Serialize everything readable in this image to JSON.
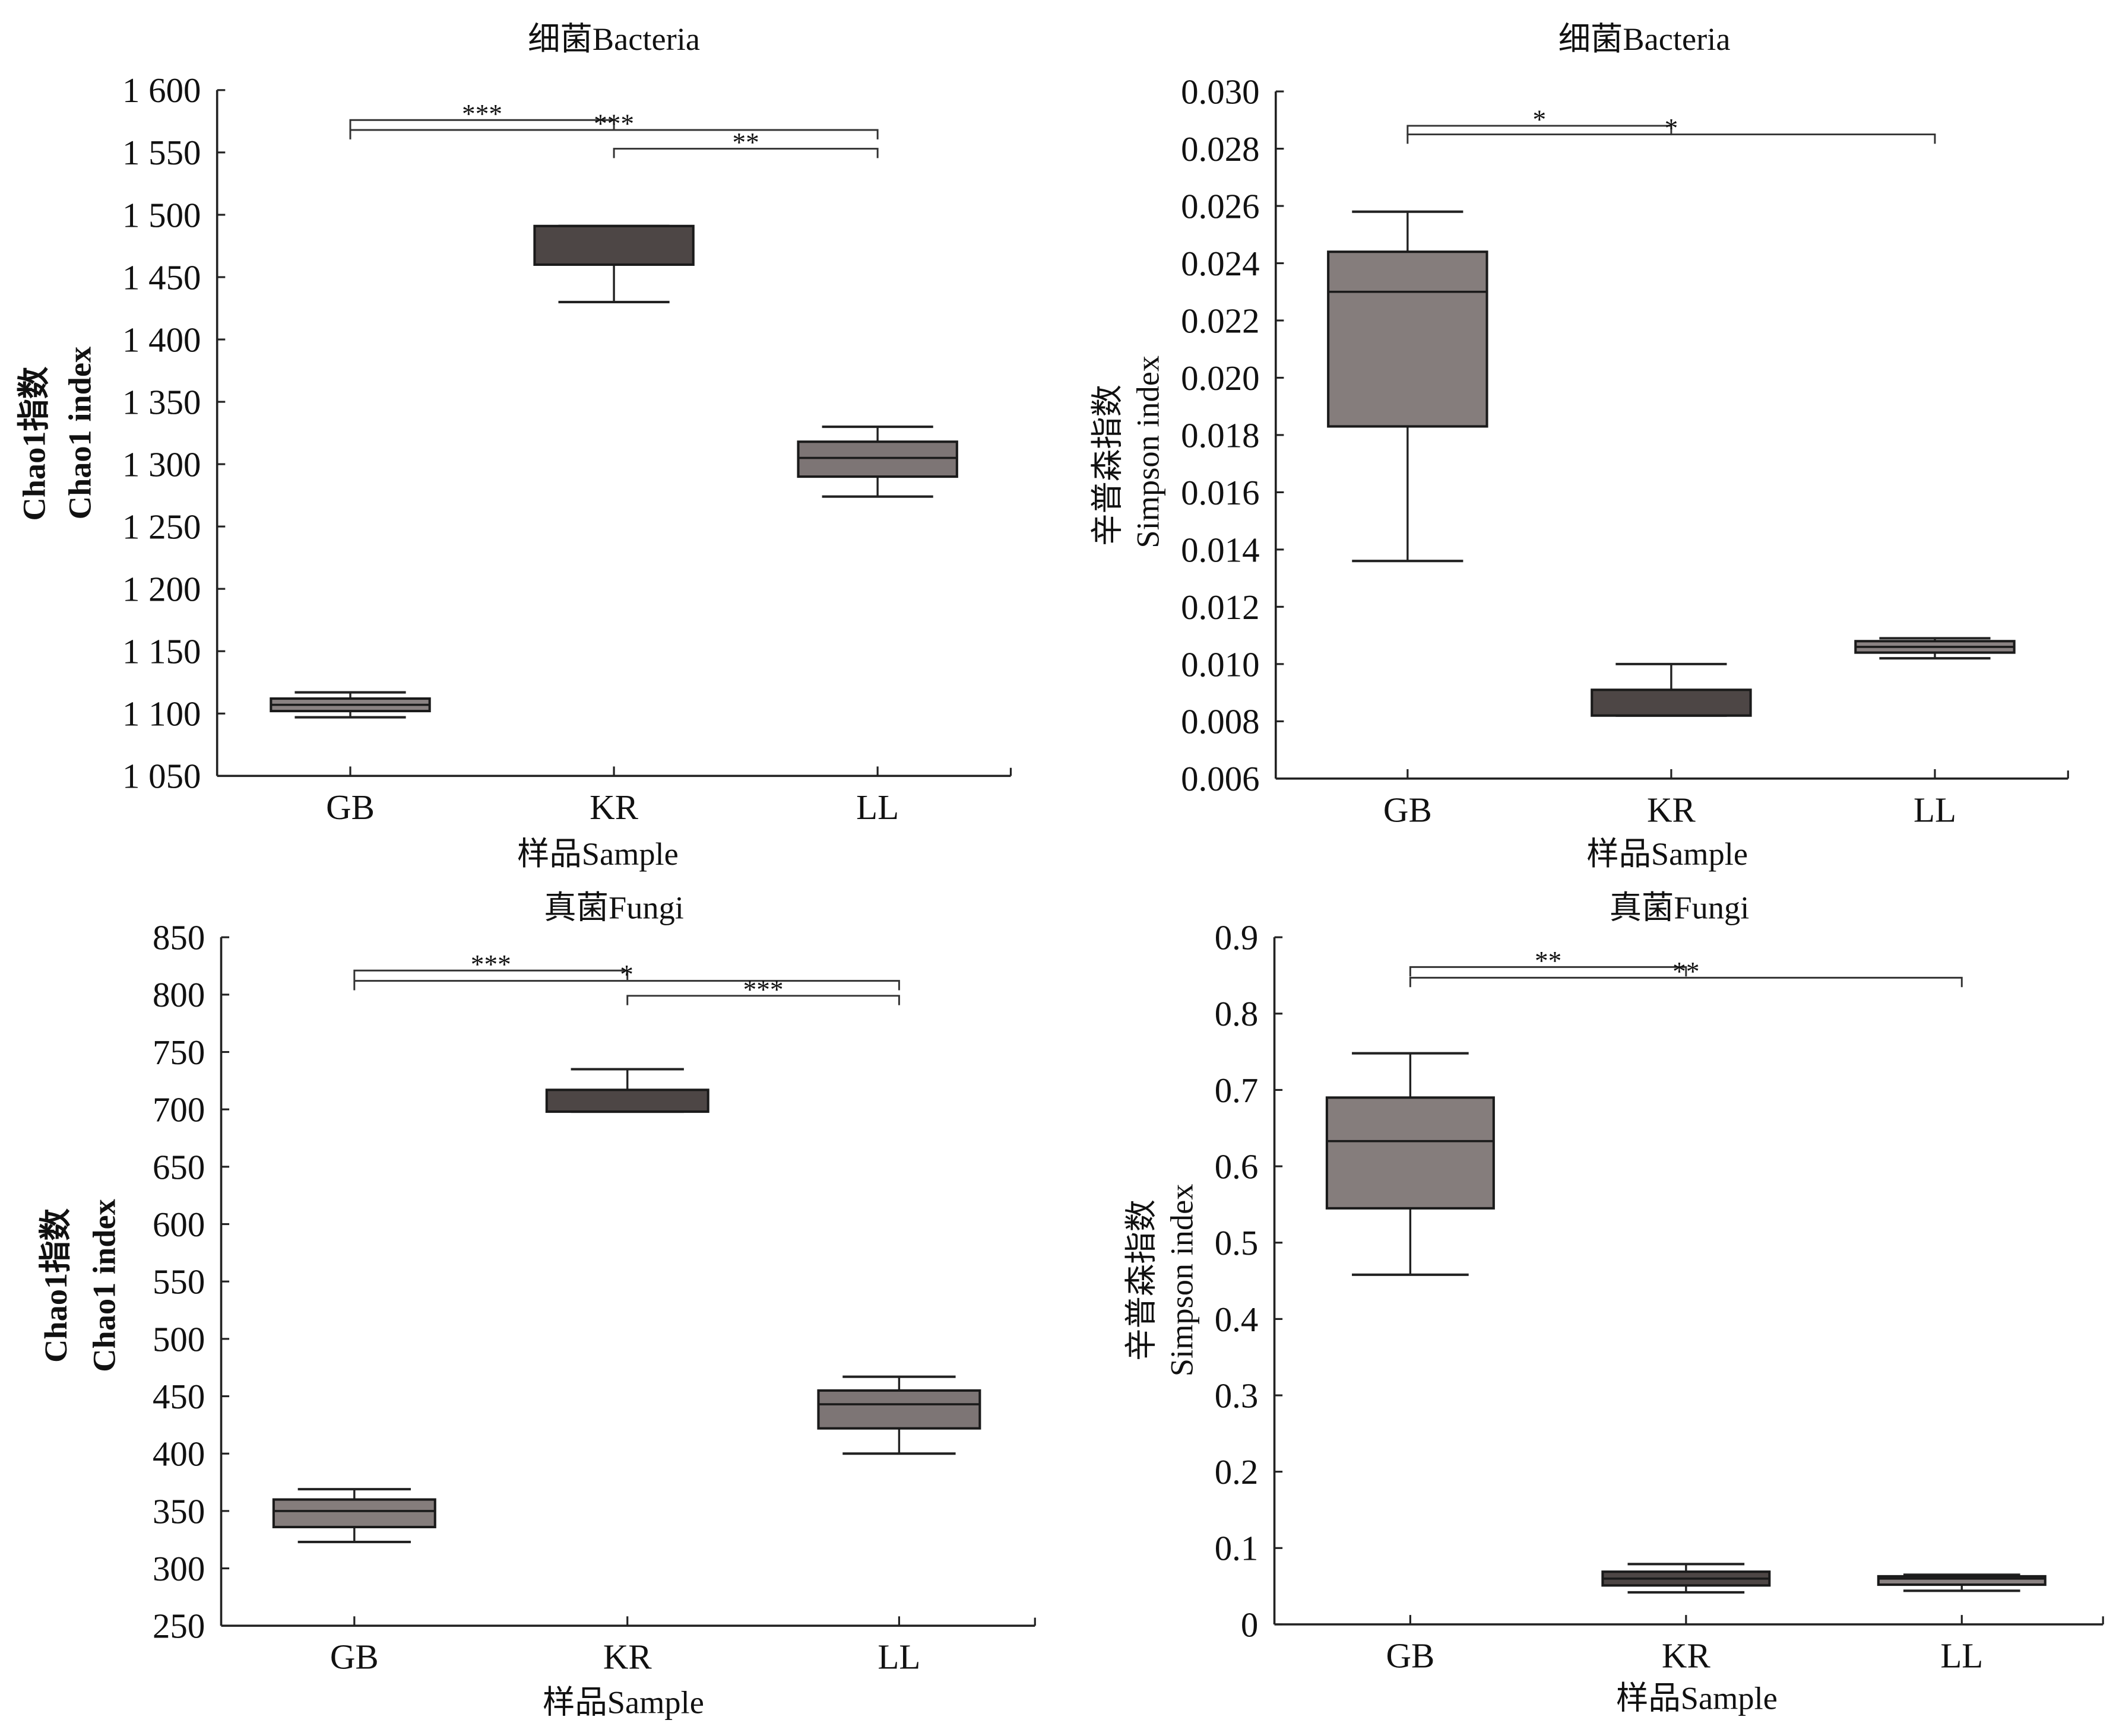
{
  "chart_data": [
    {
      "type": "box",
      "title": "细菌Bacteria",
      "xlabel": "样品Sample",
      "ylabel_cn": "Chao1指数",
      "ylabel_en": "Chao1 index",
      "ylim": [
        1050,
        1600
      ],
      "yticks": [
        1050,
        1100,
        1150,
        1200,
        1250,
        1300,
        1350,
        1400,
        1450,
        1500,
        1550,
        1600
      ],
      "ytick_labels": [
        "1 050",
        "1 100",
        "1 150",
        "1 200",
        "1 250",
        "1 300",
        "1 350",
        "1 400",
        "1 450",
        "1 500",
        "1 550",
        "1 600"
      ],
      "categories": [
        "GB",
        "KR",
        "LL"
      ],
      "boxes": [
        {
          "name": "GB",
          "min": 1097,
          "q1": 1102,
          "median": 1107,
          "q3": 1112,
          "max": 1117,
          "color": "#8a8282"
        },
        {
          "name": "KR",
          "min": 1430,
          "q1": 1460,
          "median": 1491,
          "q3": 1491,
          "max": 1491,
          "color": "#4d4645"
        },
        {
          "name": "LL",
          "min": 1274,
          "q1": 1290,
          "median": 1305,
          "q3": 1318,
          "max": 1330,
          "color": "#7d7575"
        }
      ],
      "significance": [
        {
          "from": "GB",
          "to": "KR",
          "label": "***",
          "y": 1576
        },
        {
          "from": "GB",
          "to": "LL",
          "label": "***",
          "y": 1568
        },
        {
          "from": "KR",
          "to": "LL",
          "label": "**",
          "y": 1553
        }
      ]
    },
    {
      "type": "box",
      "title": "细菌Bacteria",
      "xlabel": "样品Sample",
      "ylabel_cn": "辛普森指数",
      "ylabel_en": "Simpson index",
      "ylim": [
        0.006,
        0.03
      ],
      "yticks": [
        0.006,
        0.008,
        0.01,
        0.012,
        0.014,
        0.016,
        0.018,
        0.02,
        0.022,
        0.024,
        0.026,
        0.028,
        0.03
      ],
      "ytick_labels": [
        "0.006",
        "0.008",
        "0.010",
        "0.012",
        "0.014",
        "0.016",
        "0.018",
        "0.020",
        "0.022",
        "0.024",
        "0.026",
        "0.028",
        "0.030"
      ],
      "categories": [
        "GB",
        "KR",
        "LL"
      ],
      "boxes": [
        {
          "name": "GB",
          "min": 0.0136,
          "q1": 0.0183,
          "median": 0.023,
          "q3": 0.0244,
          "max": 0.0258,
          "color": "#857d7c"
        },
        {
          "name": "KR",
          "min": 0.0082,
          "q1": 0.0082,
          "median": 0.0082,
          "q3": 0.0091,
          "max": 0.01,
          "color": "#4d4645"
        },
        {
          "name": "LL",
          "min": 0.0102,
          "q1": 0.0104,
          "median": 0.0106,
          "q3": 0.0108,
          "max": 0.0109,
          "color": "#8a8282"
        }
      ],
      "significance": [
        {
          "from": "GB",
          "to": "KR",
          "label": "*",
          "y": 0.0288
        },
        {
          "from": "GB",
          "to": "LL",
          "label": "*",
          "y": 0.0285
        }
      ]
    },
    {
      "type": "box",
      "title": "真菌Fungi",
      "xlabel": "样品Sample",
      "ylabel_cn": "Chao1指数",
      "ylabel_en": "Chao1 index",
      "ylim": [
        250,
        850
      ],
      "yticks": [
        250,
        300,
        350,
        400,
        450,
        500,
        550,
        600,
        650,
        700,
        750,
        800,
        850
      ],
      "ytick_labels": [
        "250",
        "300",
        "350",
        "400",
        "450",
        "500",
        "550",
        "600",
        "650",
        "700",
        "750",
        "800",
        "850"
      ],
      "categories": [
        "GB",
        "KR",
        "LL"
      ],
      "boxes": [
        {
          "name": "GB",
          "min": 323,
          "q1": 336,
          "median": 350,
          "q3": 360,
          "max": 369,
          "color": "#857d7c"
        },
        {
          "name": "KR",
          "min": 698,
          "q1": 698,
          "median": 698,
          "q3": 717,
          "max": 735,
          "color": "#4d4645"
        },
        {
          "name": "LL",
          "min": 400,
          "q1": 422,
          "median": 443,
          "q3": 455,
          "max": 467,
          "color": "#7d7575"
        }
      ],
      "significance": [
        {
          "from": "GB",
          "to": "KR",
          "label": "***",
          "y": 821
        },
        {
          "from": "GB",
          "to": "LL",
          "label": "*",
          "y": 812
        },
        {
          "from": "KR",
          "to": "LL",
          "label": "***",
          "y": 799
        }
      ]
    },
    {
      "type": "box",
      "title": "真菌Fungi",
      "xlabel": "样品Sample",
      "ylabel_cn": "辛普森指数",
      "ylabel_en": "Simpson index",
      "ylim": [
        0,
        0.9
      ],
      "yticks": [
        0,
        0.1,
        0.2,
        0.3,
        0.4,
        0.5,
        0.6,
        0.7,
        0.8,
        0.9
      ],
      "ytick_labels": [
        "0",
        "0.1",
        "0.2",
        "0.3",
        "0.4",
        "0.5",
        "0.6",
        "0.7",
        "0.8",
        "0.9"
      ],
      "categories": [
        "GB",
        "KR",
        "LL"
      ],
      "boxes": [
        {
          "name": "GB",
          "min": 0.458,
          "q1": 0.545,
          "median": 0.633,
          "q3": 0.69,
          "max": 0.748,
          "color": "#857d7c"
        },
        {
          "name": "KR",
          "min": 0.042,
          "q1": 0.051,
          "median": 0.06,
          "q3": 0.069,
          "max": 0.079,
          "color": "#4d4645"
        },
        {
          "name": "LL",
          "min": 0.044,
          "q1": 0.052,
          "median": 0.06,
          "q3": 0.063,
          "max": 0.065,
          "color": "#8a8282"
        }
      ],
      "significance": [
        {
          "from": "GB",
          "to": "KR",
          "label": "**",
          "y": 0.861
        },
        {
          "from": "GB",
          "to": "LL",
          "label": "**",
          "y": 0.847
        }
      ]
    }
  ]
}
